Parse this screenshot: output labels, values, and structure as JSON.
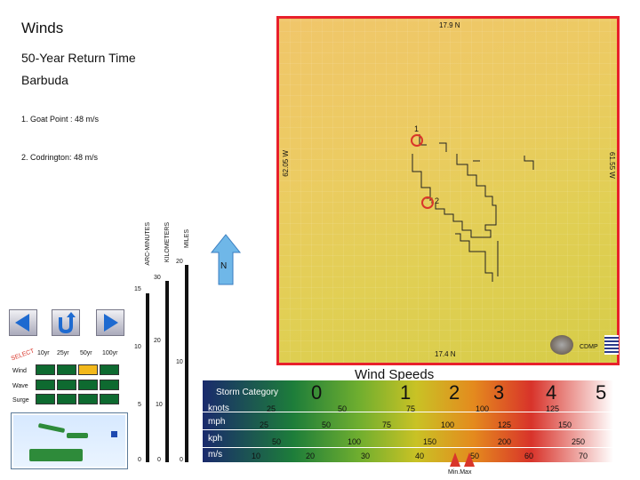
{
  "header": {
    "title": "Winds",
    "subtitle": "50-Year Return Time",
    "island": "Barbuda"
  },
  "points": [
    {
      "label": "1. Goat Point :  48 m/s",
      "id": "1"
    },
    {
      "label": "2. Codrington: 48 m/s",
      "id": "2"
    }
  ],
  "map": {
    "top_lat": "17.9 N",
    "bottom_lat": "17.4 N",
    "left_lon": "62.05 W",
    "right_lon": "61.55 W",
    "north": "N",
    "logo_label": "CDMP"
  },
  "scale": {
    "arc_label": "ARC-MINUTES",
    "km_label": "KILOMETERS",
    "mi_label": "MILES",
    "arc_ticks": [
      "15",
      "10",
      "5",
      "0"
    ],
    "km_ticks": [
      "30",
      "20",
      "10",
      "0"
    ],
    "mi_ticks": [
      "20",
      "10",
      "0"
    ]
  },
  "select": {
    "word": "SELECT",
    "columns": [
      "10yr",
      "25yr",
      "50yr",
      "100yr"
    ],
    "rows": [
      "Wind",
      "Wave",
      "Surge"
    ],
    "selected_row": 0,
    "selected_col": 2
  },
  "legend": {
    "title": "Wind Speeds",
    "storm_label": "Storm Category",
    "categories": [
      "0",
      "1",
      "2",
      "3",
      "4",
      "5"
    ],
    "units": [
      "knots",
      "mph",
      "kph",
      "m/s"
    ],
    "knots": [
      "25",
      "50",
      "75",
      "100",
      "125"
    ],
    "mph": [
      "25",
      "50",
      "75",
      "100",
      "125",
      "150"
    ],
    "kph": [
      "50",
      "100",
      "150",
      "200",
      "250"
    ],
    "ms": [
      "10",
      "20",
      "30",
      "40",
      "50",
      "60",
      "70"
    ],
    "minmax": "Min.Max"
  }
}
